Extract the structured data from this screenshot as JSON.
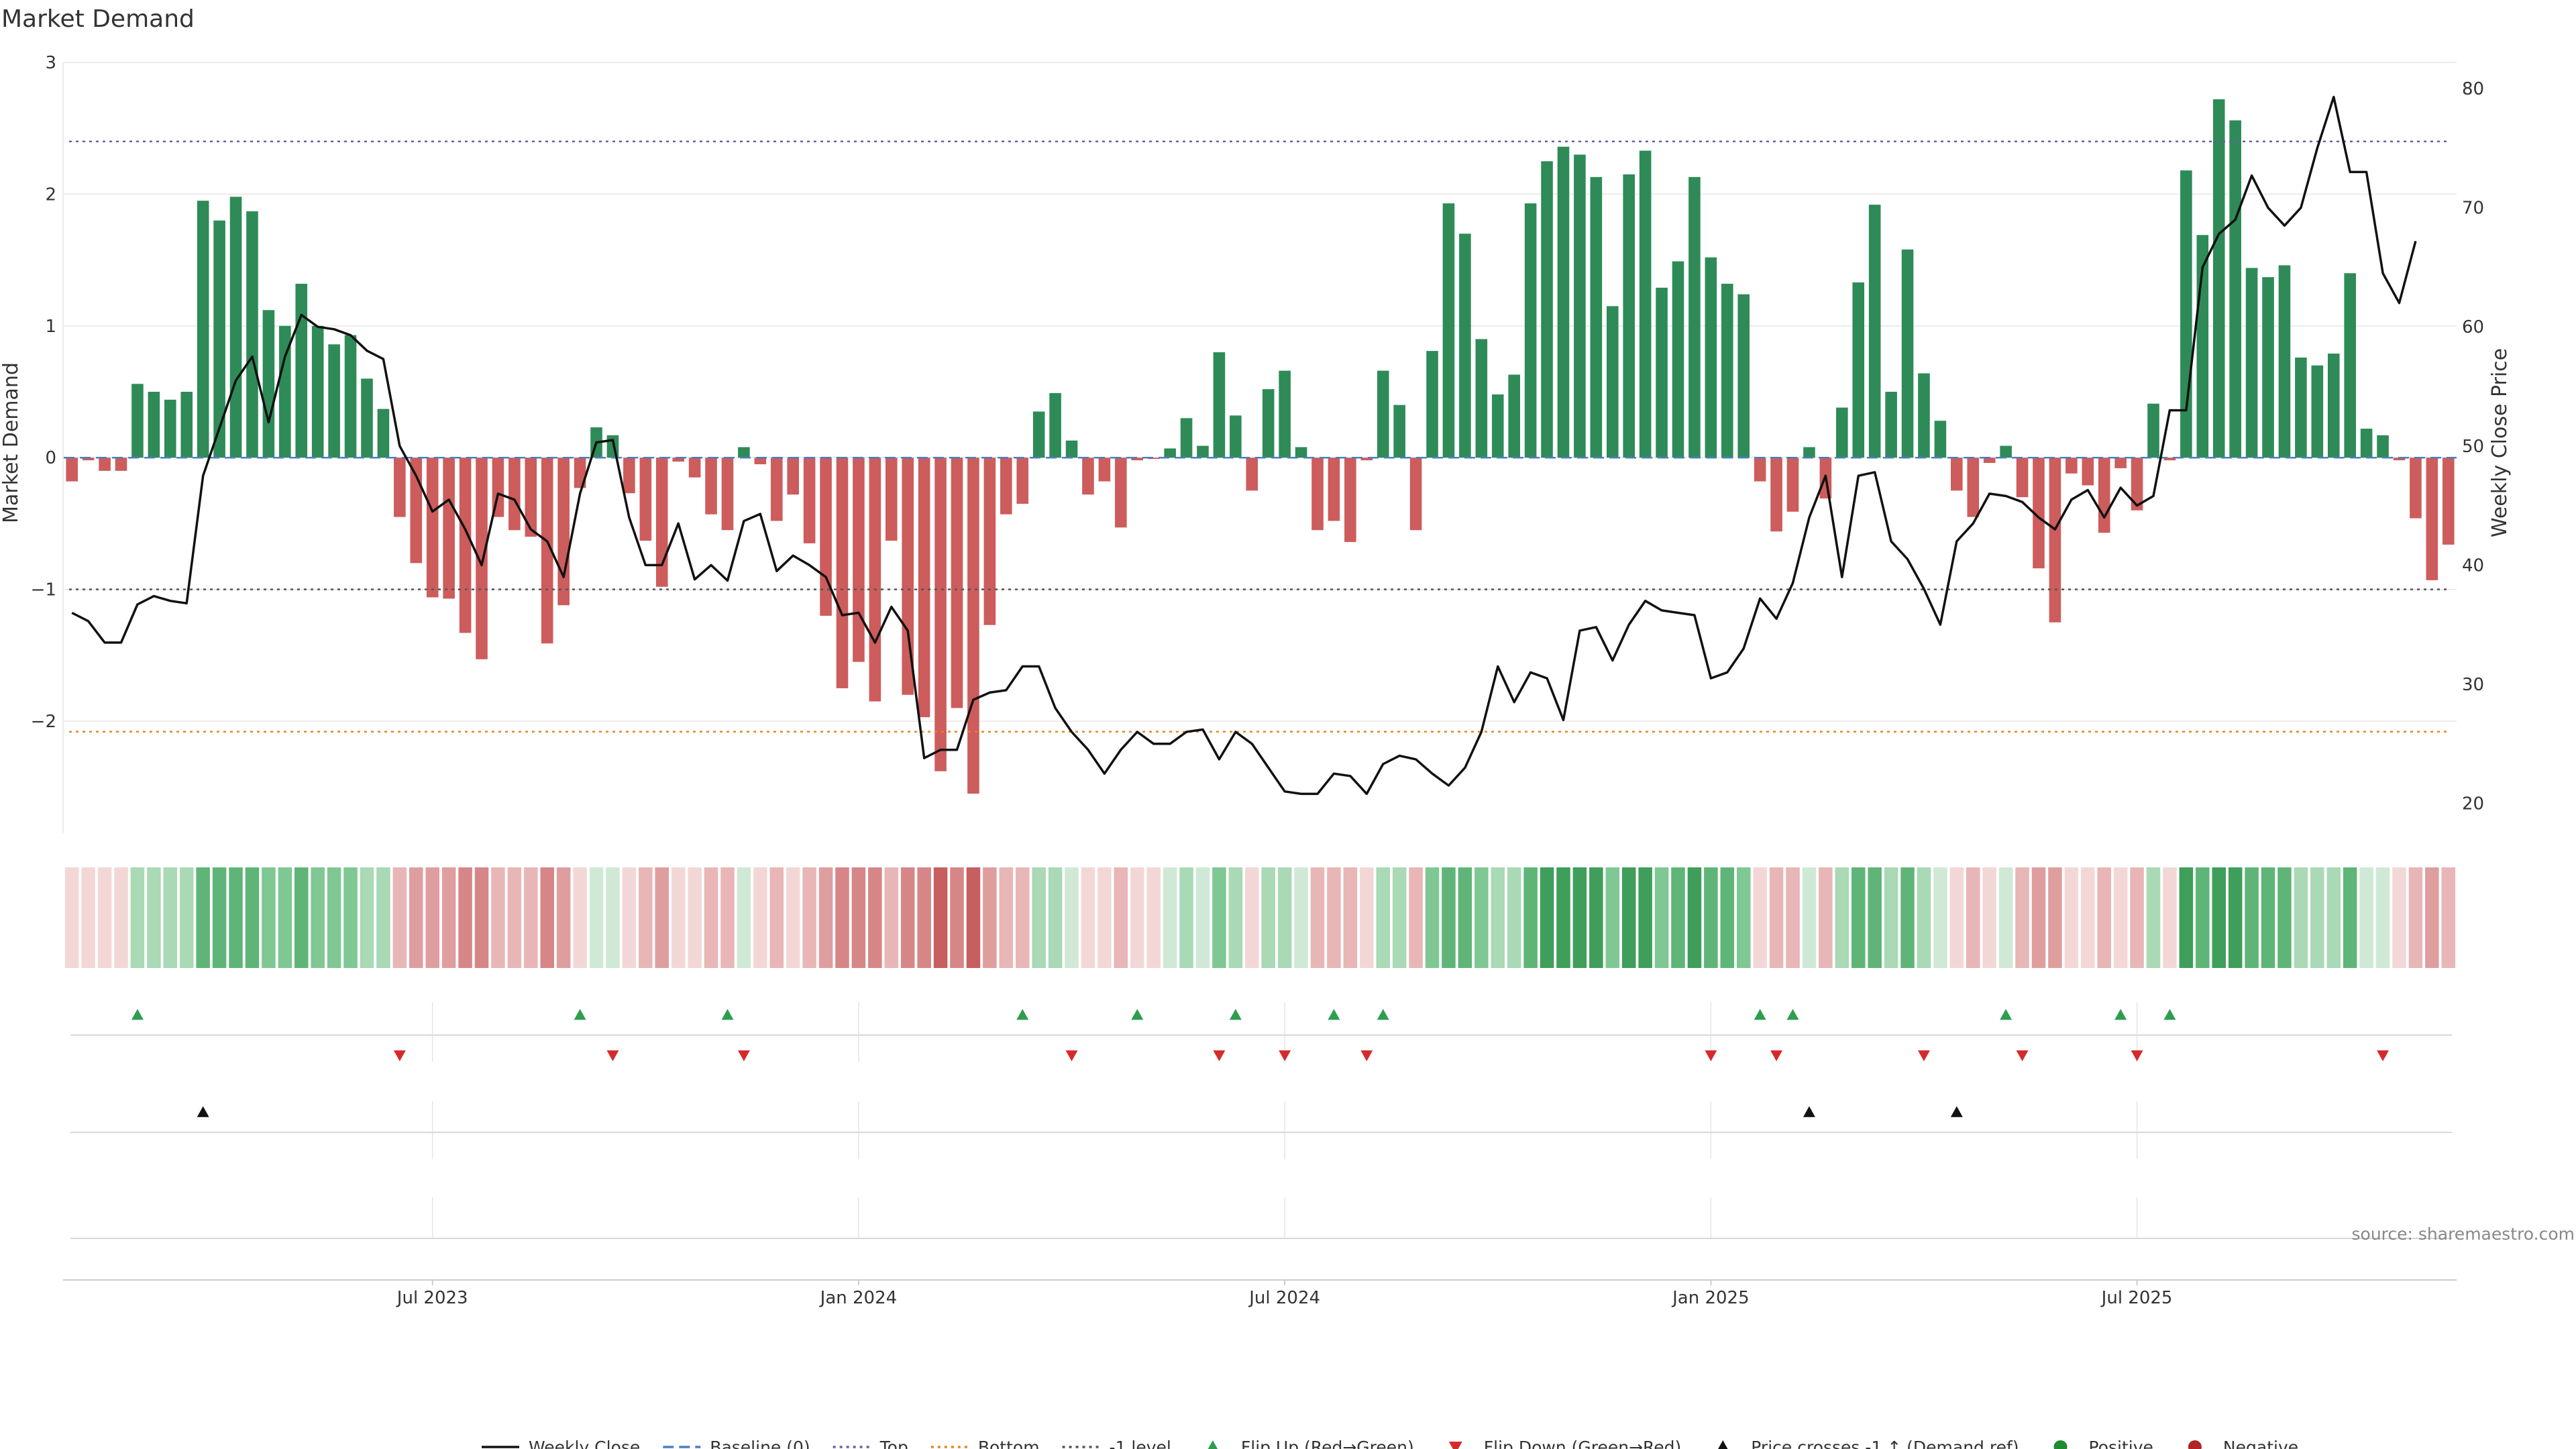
{
  "chart_data": {
    "type": "bar",
    "title": "Market Demand",
    "ylabel": "Market Demand",
    "y2label": "Weekly Close Price",
    "ylim": [
      -2.85,
      3.0
    ],
    "y2lim": [
      17.5,
      82.2
    ],
    "yticks": [
      {
        "v": 3,
        "label": "3"
      },
      {
        "v": 2,
        "label": "2"
      },
      {
        "v": 1,
        "label": "1"
      },
      {
        "v": 0,
        "label": "0"
      },
      {
        "v": -1,
        "label": "−1"
      },
      {
        "v": -2,
        "label": "−2"
      }
    ],
    "y2ticks": [
      {
        "v": 80,
        "label": "80"
      },
      {
        "v": 70,
        "label": "70"
      },
      {
        "v": 60,
        "label": "60"
      },
      {
        "v": 50,
        "label": "50"
      },
      {
        "v": 40,
        "label": "40"
      },
      {
        "v": 30,
        "label": "30"
      },
      {
        "v": 20,
        "label": "20"
      }
    ],
    "xticks": [
      {
        "i": 22,
        "label": "Jul 2023"
      },
      {
        "i": 48,
        "label": "Jan 2024"
      },
      {
        "i": 74,
        "label": "Jul 2024"
      },
      {
        "i": 100,
        "label": "Jan 2025"
      },
      {
        "i": 126,
        "label": "Jul 2025"
      }
    ],
    "levels": {
      "top": 2.4,
      "bottom": -2.08,
      "minus_one": -1.0
    },
    "demand": [
      -0.18,
      -0.02,
      -0.1,
      -0.1,
      0.56,
      0.5,
      0.44,
      0.5,
      1.95,
      1.8,
      1.98,
      1.87,
      1.12,
      1.0,
      1.32,
      1.0,
      0.86,
      0.93,
      0.6,
      0.37,
      -0.45,
      -0.8,
      -1.06,
      -1.07,
      -1.33,
      -1.53,
      -0.45,
      -0.55,
      -0.6,
      -1.41,
      -1.12,
      -0.23,
      0.23,
      0.17,
      -0.27,
      -0.63,
      -0.98,
      -0.03,
      -0.15,
      -0.43,
      -0.55,
      0.08,
      -0.05,
      -0.48,
      -0.28,
      -0.65,
      -1.2,
      -1.75,
      -1.55,
      -1.85,
      -0.63,
      -1.8,
      -1.97,
      -2.38,
      -1.9,
      -2.55,
      -1.27,
      -0.43,
      -0.35,
      0.35,
      0.49,
      0.13,
      -0.28,
      -0.18,
      -0.53,
      -0.02,
      -0.01,
      0.07,
      0.3,
      0.09,
      0.8,
      0.32,
      -0.25,
      0.52,
      0.66,
      0.08,
      -0.55,
      -0.48,
      -0.64,
      -0.02,
      0.66,
      0.4,
      -0.55,
      0.81,
      1.93,
      1.7,
      0.9,
      0.48,
      0.63,
      1.93,
      2.25,
      2.36,
      2.3,
      2.13,
      1.15,
      2.15,
      2.33,
      1.29,
      1.49,
      2.13,
      1.52,
      1.32,
      1.24,
      -0.18,
      -0.56,
      -0.41,
      0.08,
      -0.31,
      0.38,
      1.33,
      1.92,
      0.5,
      1.58,
      0.64,
      0.28,
      -0.25,
      -0.45,
      -0.04,
      0.09,
      -0.3,
      -0.84,
      -1.25,
      -0.12,
      -0.21,
      -0.57,
      -0.08,
      -0.4,
      0.41,
      -0.02,
      2.18,
      1.69,
      2.72,
      2.56,
      1.44,
      1.37,
      1.46,
      0.76,
      0.7,
      0.79,
      1.4,
      0.22,
      0.17,
      -0.02,
      -0.46,
      -0.93,
      -0.66
    ],
    "series": [
      {
        "name": "Weekly Close",
        "values": [
          36.0,
          35.3,
          33.5,
          33.5,
          36.7,
          37.4,
          37.0,
          36.8,
          47.5,
          51.5,
          55.5,
          57.5,
          52.0,
          57.5,
          61.0,
          60.0,
          59.8,
          59.3,
          58.0,
          57.3,
          50.0,
          47.5,
          44.5,
          45.5,
          43.0,
          40.0,
          46.0,
          45.5,
          43.0,
          42.0,
          39.0,
          46.0,
          50.3,
          50.5,
          44.0,
          40.0,
          40.0,
          43.5,
          38.8,
          40.0,
          38.7,
          43.7,
          44.3,
          39.5,
          40.8,
          40.0,
          39.0,
          35.8,
          36.0,
          33.5,
          36.5,
          34.5,
          23.8,
          24.5,
          24.5,
          28.7,
          29.3,
          29.5,
          31.5,
          31.5,
          28.0,
          26.0,
          24.5,
          22.5,
          24.5,
          26.0,
          25.0,
          25.0,
          26.0,
          26.2,
          23.7,
          26.0,
          25.0,
          23.0,
          21.0,
          20.8,
          20.8,
          22.5,
          22.3,
          20.8,
          23.3,
          24.0,
          23.7,
          22.5,
          21.5,
          23.0,
          26.0,
          31.5,
          28.5,
          31.0,
          30.5,
          27.0,
          34.5,
          34.8,
          32.0,
          35.0,
          37.0,
          36.2,
          36.0,
          35.8,
          30.5,
          31.0,
          33.0,
          37.2,
          35.5,
          38.5,
          44.0,
          47.5,
          39.0,
          47.5,
          47.8,
          42.0,
          40.5,
          38.0,
          35.0,
          42.0,
          43.5,
          46.0,
          45.8,
          45.3,
          44.0,
          43.0,
          45.5,
          46.3,
          44.0,
          46.5,
          45.0,
          45.8,
          53.0,
          53.0,
          65.0,
          67.8,
          69.0,
          72.7,
          70.0,
          68.5,
          70.0,
          75.0,
          79.3,
          73.0,
          73.0,
          64.5,
          62.0,
          67.2
        ]
      }
    ],
    "heat_colors": {
      "pos": [
        "#cfe9d6",
        "#a9d9b5",
        "#7fc793",
        "#5fb577",
        "#3f9e5a"
      ],
      "neg": [
        "#f3d7d7",
        "#e8b6b6",
        "#df9e9e",
        "#d68686",
        "#c85f5f"
      ]
    },
    "flip_up": [
      4,
      31,
      40,
      58,
      65,
      71,
      77,
      80,
      103,
      105,
      118,
      125,
      128
    ],
    "flip_down": [
      20,
      33,
      41,
      61,
      70,
      74,
      79,
      100,
      104,
      113,
      119,
      126,
      141
    ],
    "cross_up": [
      8,
      106,
      115
    ],
    "source": "source: sharemaestro.com",
    "legend": [
      {
        "label": "Weekly Close",
        "kind": "line",
        "color": "#111111",
        "dash": ""
      },
      {
        "label": "Baseline (0)",
        "kind": "line",
        "color": "#4a7fc1",
        "dash": "16,8"
      },
      {
        "label": "Top",
        "kind": "line",
        "color": "#6a5fa8",
        "dash": "4,6"
      },
      {
        "label": "Bottom",
        "kind": "line",
        "color": "#e08a1e",
        "dash": "4,6"
      },
      {
        "label": "-1 level",
        "kind": "line",
        "color": "#555555",
        "dash": "4,6"
      },
      {
        "label": "Flip Up (Red→Green)",
        "kind": "up",
        "color": "#2e9e4e"
      },
      {
        "label": "Flip Down (Green→Red)",
        "kind": "down",
        "color": "#d62a2a"
      },
      {
        "label": "Price crosses -1 ↑ (Demand ref)",
        "kind": "up",
        "color": "#111111"
      },
      {
        "label": "Positive",
        "kind": "dot",
        "color": "#1f8a2e"
      },
      {
        "label": "Negative",
        "kind": "dot",
        "color": "#b02424"
      }
    ],
    "colors": {
      "pos_bar": "#2e8b57",
      "neg_bar": "#cd5c5c",
      "grid": "#e6e6e6"
    }
  }
}
